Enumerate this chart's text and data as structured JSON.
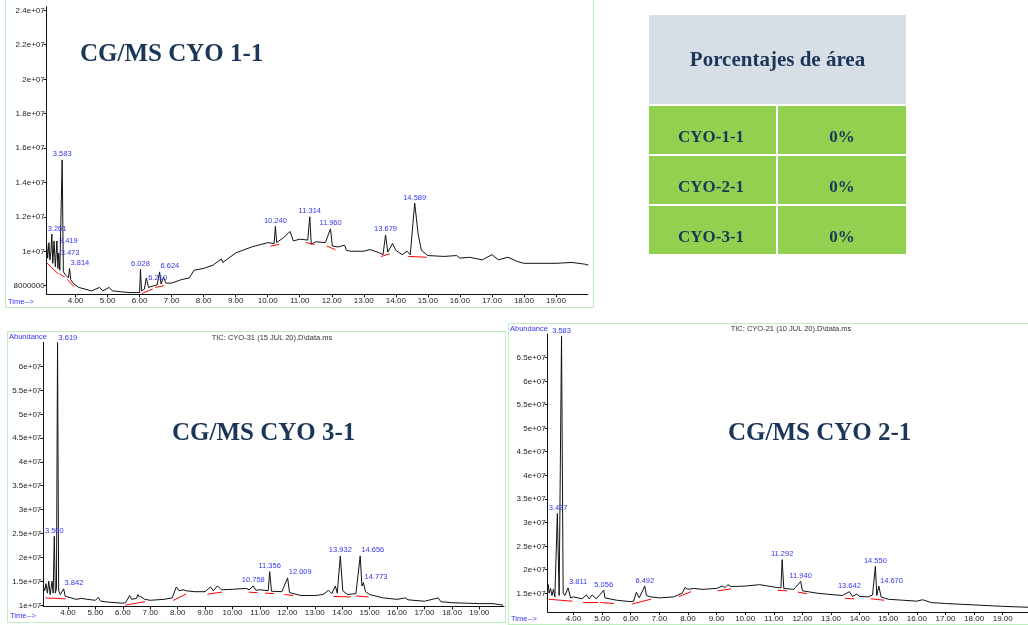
{
  "chart_data": [
    {
      "type": "line",
      "title": "CG/MS CYO 1-1",
      "xlabel": "Time-->",
      "marker": "none",
      "xlim": [
        3.1,
        20.0
      ],
      "ylim": [
        7500000,
        24200000
      ],
      "xticks": [
        {
          "value": 4,
          "label": "4.00"
        },
        {
          "value": 5,
          "label": "5.00"
        },
        {
          "value": 6,
          "label": "6.00"
        },
        {
          "value": 7,
          "label": "7.00"
        },
        {
          "value": 8,
          "label": "8.00"
        },
        {
          "value": 9,
          "label": "9.00"
        },
        {
          "value": 10,
          "label": "10.00"
        },
        {
          "value": 11,
          "label": "11.00"
        },
        {
          "value": 12,
          "label": "12.00"
        },
        {
          "value": 13,
          "label": "13.00"
        },
        {
          "value": 14,
          "label": "14.00"
        },
        {
          "value": 15,
          "label": "15.00"
        },
        {
          "value": 16,
          "label": "16.00"
        },
        {
          "value": 17,
          "label": "17.00"
        },
        {
          "value": 18,
          "label": "18.00"
        },
        {
          "value": 19,
          "label": "19.00"
        }
      ],
      "yticks": [
        8000000,
        {
          "value": 10000000,
          "label": "1e+07"
        },
        {
          "value": 12000000,
          "label": "1.2e+07"
        },
        {
          "value": 14000000,
          "label": "1.4e+07"
        },
        {
          "value": 16000000,
          "label": "1.6e+07"
        },
        {
          "value": 18000000,
          "label": "1.8e+07"
        },
        {
          "value": 20000000,
          "label": "2e+07"
        },
        {
          "value": 22000000,
          "label": "2.2e+07"
        },
        {
          "value": 24000000,
          "label": "2.4e+07"
        }
      ],
      "series": [
        {
          "color": "#111111",
          "x": [
            3.1,
            3.13,
            3.17,
            3.2,
            3.23,
            3.261,
            3.29,
            3.33,
            3.37,
            3.419,
            3.45,
            3.473,
            3.51,
            3.583,
            3.62,
            3.7,
            3.78,
            3.814,
            3.85,
            3.95,
            4.1,
            4.3,
            4.5,
            4.75,
            4.85,
            5.05,
            5.15,
            5.4,
            5.7,
            5.95,
            6.0,
            6.028,
            6.06,
            6.15,
            6.21,
            6.28,
            6.45,
            6.55,
            6.624,
            6.67,
            6.75,
            6.82,
            7.0,
            7.3,
            7.55,
            7.7,
            8.0,
            8.3,
            8.55,
            8.6,
            9.0,
            9.5,
            10.0,
            10.2,
            10.24,
            10.28,
            10.5,
            10.7,
            10.8,
            11.0,
            11.25,
            11.314,
            11.36,
            11.5,
            11.8,
            11.96,
            12.02,
            12.2,
            12.4,
            12.46,
            12.6,
            13.0,
            13.2,
            13.5,
            13.6,
            13.679,
            13.75,
            13.9,
            14.0,
            14.2,
            14.35,
            14.45,
            14.589,
            14.7,
            14.8,
            15.0,
            15.5,
            15.9,
            16.0,
            16.3,
            16.7,
            17.0,
            17.2,
            17.5,
            17.8,
            18.0,
            18.5,
            19.0,
            19.5,
            19.9,
            20.0
          ],
          "values": [
            10400000,
            9600000,
            10500000,
            9500000,
            9900000,
            11000000,
            9300000,
            10600000,
            9100000,
            10600000,
            9000000,
            9900000,
            8900000,
            15300000,
            8800000,
            8600000,
            8450000,
            9000000,
            8350000,
            8100000,
            7900000,
            7800000,
            7700000,
            7900000,
            7700000,
            7900000,
            7700000,
            7650000,
            7600000,
            7600000,
            7600000,
            8950000,
            7700000,
            7800000,
            8450000,
            7900000,
            8000000,
            8050000,
            8800000,
            8100000,
            8500000,
            8150000,
            8150000,
            8350000,
            8450000,
            8900000,
            9000000,
            9200000,
            9550000,
            9350000,
            9900000,
            10250000,
            10500000,
            10450000,
            11450000,
            10500000,
            10800000,
            11150000,
            10600000,
            10700000,
            10650000,
            12000000,
            10400000,
            10550000,
            10500000,
            11300000,
            10300000,
            10250000,
            10350000,
            10050000,
            10000000,
            10000000,
            10100000,
            9900000,
            9800000,
            10950000,
            9950000,
            10450000,
            10050000,
            9800000,
            10000000,
            9800000,
            12800000,
            10950000,
            10050000,
            9750000,
            9700000,
            9750000,
            9600000,
            9650000,
            9500000,
            9800000,
            9500000,
            9650000,
            9400000,
            9300000,
            9300000,
            9300000,
            9350000,
            9250000,
            9200000
          ]
        },
        {
          "color": "#ff0000",
          "x": [
            3.12,
            3.45,
            3.47,
            3.5,
            3.65,
            3.7,
            3.75,
            3.95,
            5.0,
            6.08,
            6.4,
            6.45,
            6.5,
            6.75,
            8.4,
            10.1,
            10.35,
            10.8,
            11.2,
            11.45,
            11.6,
            11.85,
            12.1,
            12.8,
            13.55,
            13.8,
            14.1,
            14.4,
            14.95
          ],
          "values": [
            9300000,
            8700000,
            null,
            8700000,
            8500000,
            null,
            8350000,
            7950000,
            null,
            7550000,
            7800000,
            null,
            7900000,
            8000000,
            null,
            10300000,
            10400000,
            null,
            10500000,
            10400000,
            null,
            10300000,
            10100000,
            null,
            9700000,
            9850000,
            null,
            9700000,
            9650000
          ]
        }
      ],
      "annotations": [
        {
          "text": "3.261",
          "x": 3.261,
          "y": 11000000
        },
        {
          "text": "3.419",
          "x": 3.419,
          "y": 10600000
        },
        {
          "text": "3.473",
          "x": 3.473,
          "y": 9900000
        },
        {
          "text": "3.583",
          "x": 3.583,
          "y": 15300000
        },
        {
          "text": "3.814",
          "x": 3.814,
          "y": 9000000
        },
        {
          "text": "6.028",
          "x": 6.028,
          "y": 8950000
        },
        {
          "text": "6.210",
          "x": 6.21,
          "y": 8450000
        },
        {
          "text": "6.624",
          "x": 6.624,
          "y": 8800000
        },
        {
          "text": "10.240",
          "x": 10.24,
          "y": 11450000
        },
        {
          "text": "11.314",
          "x": 11.314,
          "y": 12000000
        },
        {
          "text": "11.960",
          "x": 11.96,
          "y": 11300000
        },
        {
          "text": "13.679",
          "x": 13.679,
          "y": 10950000
        },
        {
          "text": "14.589",
          "x": 14.589,
          "y": 12800000
        }
      ]
    },
    {
      "type": "other",
      "title": "Porcentajes de área",
      "annotations": [
        "CYO-1-1",
        "0%",
        "CYO-2-1",
        "0%",
        "CYO-3-1",
        "0%"
      ]
    },
    {
      "type": "line",
      "title": "CG/MS CYO 3-1",
      "subtitle": "TIC: CYO-31 (15 JUL 20).D\\data.ms",
      "xlabel": "Time-->",
      "ylabel": "Abundance",
      "marker": "none",
      "xlim": [
        3.1,
        19.9
      ],
      "ylim": [
        9700000,
        65000000
      ],
      "xticks": [
        {
          "value": 4,
          "label": "4.00"
        },
        {
          "value": 5,
          "label": "5.00"
        },
        {
          "value": 6,
          "label": "6.00"
        },
        {
          "value": 7,
          "label": "7.00"
        },
        {
          "value": 8,
          "label": "8.00"
        },
        {
          "value": 9,
          "label": "9.00"
        },
        {
          "value": 10,
          "label": "10.00"
        },
        {
          "value": 11,
          "label": "11.00"
        },
        {
          "value": 12,
          "label": "12.00"
        },
        {
          "value": 13,
          "label": "13.00"
        },
        {
          "value": 14,
          "label": "14.00"
        },
        {
          "value": 15,
          "label": "15.00"
        },
        {
          "value": 16,
          "label": "16.00"
        },
        {
          "value": 17,
          "label": "17.00"
        },
        {
          "value": 18,
          "label": "18.00"
        },
        {
          "value": 19,
          "label": "19.00"
        }
      ],
      "yticks": [
        {
          "value": 10000000,
          "label": "1e+07"
        },
        {
          "value": 15000000,
          "label": "1.5e+07"
        },
        {
          "value": 20000000,
          "label": "2e+07"
        },
        {
          "value": 25000000,
          "label": "2.5e+07"
        },
        {
          "value": 30000000,
          "label": "3e+07"
        },
        {
          "value": 35000000,
          "label": "3.5e+07"
        },
        {
          "value": 40000000,
          "label": "4e+07"
        },
        {
          "value": 45000000,
          "label": "4.5e+07"
        },
        {
          "value": 50000000,
          "label": "5e+07"
        },
        {
          "value": 55000000,
          "label": "5.5e+07"
        },
        {
          "value": 60000000,
          "label": "6e+07"
        }
      ],
      "series": [
        {
          "color": "#111111",
          "x": [
            3.1,
            3.15,
            3.2,
            3.25,
            3.3,
            3.35,
            3.42,
            3.46,
            3.5,
            3.54,
            3.58,
            3.619,
            3.66,
            3.72,
            3.842,
            3.9,
            4.0,
            4.3,
            4.5,
            4.7,
            5.0,
            5.1,
            5.2,
            5.5,
            6.0,
            6.1,
            6.25,
            6.32,
            6.5,
            6.55,
            6.6,
            6.65,
            6.8,
            7.0,
            7.5,
            7.8,
            7.95,
            8.05,
            8.2,
            8.3,
            8.6,
            9.0,
            9.2,
            9.3,
            9.45,
            9.6,
            10.0,
            10.5,
            10.6,
            10.758,
            10.85,
            11.0,
            11.3,
            11.356,
            11.42,
            11.8,
            12.009,
            12.08,
            12.5,
            13.0,
            13.3,
            13.5,
            13.62,
            13.75,
            13.82,
            13.932,
            14.02,
            14.2,
            14.5,
            14.656,
            14.72,
            14.773,
            14.85,
            15.0,
            15.5,
            16.0,
            16.3,
            16.4,
            17.0,
            17.5,
            17.6,
            18.0,
            18.5,
            19.0,
            19.5,
            19.85
          ],
          "values": [
            14100000,
            13000000,
            14500000,
            12500000,
            15000000,
            12200000,
            15000000,
            12500000,
            24400000,
            12500000,
            13500000,
            65000000,
            13000000,
            12200000,
            13400000,
            11800000,
            11700000,
            11200000,
            11400000,
            11200000,
            11000000,
            11600000,
            10800000,
            10600000,
            10400000,
            10500000,
            12000000,
            11200000,
            11400000,
            12200000,
            11700000,
            11800000,
            11200000,
            11000000,
            11200000,
            11500000,
            13800000,
            13000000,
            13200000,
            13000000,
            12800000,
            12800000,
            13800000,
            13000000,
            14000000,
            13200000,
            13300000,
            13500000,
            13200000,
            14000000,
            13100000,
            13200000,
            13000000,
            17000000,
            12900000,
            12800000,
            15700000,
            12600000,
            12000000,
            12000000,
            12200000,
            13100000,
            12400000,
            14000000,
            12500000,
            20300000,
            13000000,
            12200000,
            12400000,
            20300000,
            14000000,
            14700000,
            12800000,
            12200000,
            11500000,
            11200000,
            11500000,
            11100000,
            10800000,
            11500000,
            10700000,
            10500000,
            10400000,
            10300000,
            10300000,
            10000000
          ]
        },
        {
          "color": "#ff0000",
          "x": [
            3.2,
            3.9,
            5.0,
            6.1,
            6.8,
            7.3,
            7.85,
            8.3,
            8.7,
            9.1,
            9.6,
            10.1,
            10.6,
            10.9,
            11.05,
            11.2,
            11.5,
            11.7,
            11.9,
            12.2,
            13.0,
            13.7,
            14.3,
            14.4,
            14.5,
            14.95
          ],
          "values": [
            11500000,
            11300000,
            null,
            10000000,
            10700000,
            null,
            11000000,
            12300000,
            null,
            12300000,
            12700000,
            null,
            12700000,
            12600000,
            null,
            12500000,
            12400000,
            null,
            12200000,
            12000000,
            null,
            11800000,
            11700000,
            null,
            11900000,
            11700000
          ]
        }
      ],
      "annotations": [
        {
          "text": "3.500",
          "x": 3.5,
          "y": 24400000
        },
        {
          "text": "3.619",
          "x": 3.619,
          "y": 65000000
        },
        {
          "text": "3.842",
          "x": 3.842,
          "y": 13400000
        },
        {
          "text": "10.758",
          "x": 10.758,
          "y": 14000000
        },
        {
          "text": "11.356",
          "x": 11.356,
          "y": 17000000
        },
        {
          "text": "12.009",
          "x": 12.009,
          "y": 15700000
        },
        {
          "text": "13.932",
          "x": 13.932,
          "y": 20300000
        },
        {
          "text": "14.656",
          "x": 14.656,
          "y": 20300000
        },
        {
          "text": "14.773",
          "x": 14.773,
          "y": 14700000
        }
      ]
    },
    {
      "type": "line",
      "title": "CG/MS CYO 2-1",
      "subtitle": "TIC: CYO-21 (10 JUL 20).D\\data.ms",
      "xlabel": "Time-->",
      "ylabel": "Abundance",
      "marker": "none",
      "xlim": [
        3.1,
        19.9
      ],
      "ylim": [
        11000000,
        70000000
      ],
      "xticks": [
        {
          "value": 4,
          "label": "4.00"
        },
        {
          "value": 5,
          "label": "5.00"
        },
        {
          "value": 6,
          "label": "6.00"
        },
        {
          "value": 7,
          "label": "7.00"
        },
        {
          "value": 8,
          "label": "8.00"
        },
        {
          "value": 9,
          "label": "9.00"
        },
        {
          "value": 10,
          "label": "10.00"
        },
        {
          "value": 11,
          "label": "11.00"
        },
        {
          "value": 12,
          "label": "12.00"
        },
        {
          "value": 13,
          "label": "13.00"
        },
        {
          "value": 14,
          "label": "14.00"
        },
        {
          "value": 15,
          "label": "15.00"
        },
        {
          "value": 16,
          "label": "16.00"
        },
        {
          "value": 17,
          "label": "17.00"
        },
        {
          "value": 18,
          "label": "18.00"
        },
        {
          "value": 19,
          "label": "19.00"
        }
      ],
      "yticks": [
        {
          "value": 15000000,
          "label": "1.5e+07"
        },
        {
          "value": 20000000,
          "label": "2e+07"
        },
        {
          "value": 25000000,
          "label": "2.5e+07"
        },
        {
          "value": 30000000,
          "label": "3e+07"
        },
        {
          "value": 35000000,
          "label": "3.5e+07"
        },
        {
          "value": 40000000,
          "label": "4e+07"
        },
        {
          "value": 45000000,
          "label": "4.5e+07"
        },
        {
          "value": 50000000,
          "label": "5e+07"
        },
        {
          "value": 55000000,
          "label": "5.5e+07"
        },
        {
          "value": 60000000,
          "label": "6e+07"
        },
        {
          "value": 65000000,
          "label": "6.5e+07"
        }
      ],
      "series": [
        {
          "color": "#111111",
          "x": [
            3.12,
            3.15,
            3.2,
            3.25,
            3.3,
            3.35,
            3.437,
            3.5,
            3.583,
            3.64,
            3.7,
            3.811,
            3.9,
            4.0,
            4.3,
            4.45,
            4.55,
            4.65,
            4.8,
            5.056,
            5.1,
            5.5,
            6.0,
            6.1,
            6.2,
            6.3,
            6.492,
            6.55,
            6.7,
            7.0,
            7.5,
            7.8,
            7.9,
            8.0,
            8.2,
            8.5,
            9.0,
            9.2,
            9.3,
            9.4,
            9.5,
            10.0,
            10.5,
            11.0,
            11.25,
            11.292,
            11.35,
            11.7,
            11.94,
            12.0,
            12.5,
            13.0,
            13.4,
            13.642,
            13.75,
            13.9,
            14.0,
            14.3,
            14.45,
            14.55,
            14.6,
            14.67,
            14.75,
            15.0,
            15.5,
            16.0,
            16.2,
            16.5,
            17.0,
            18.0,
            19.0,
            19.9
          ],
          "values": [
            16800000,
            15000000,
            16000000,
            14500000,
            15800000,
            14200000,
            31900000,
            14500000,
            69500000,
            15000000,
            14500000,
            16100000,
            14000000,
            14200000,
            13800000,
            14600000,
            13800000,
            14600000,
            13800000,
            15600000,
            14000000,
            13500000,
            13200000,
            13300000,
            15200000,
            14000000,
            16500000,
            14500000,
            14200000,
            14000000,
            14200000,
            15000000,
            16200000,
            15800000,
            16000000,
            15800000,
            16000000,
            16500000,
            16200000,
            16800000,
            16400000,
            16500000,
            16800000,
            16300000,
            16100000,
            22100000,
            16000000,
            15800000,
            17500000,
            15500000,
            15000000,
            14700000,
            14500000,
            15300000,
            14300000,
            14800000,
            14300000,
            14200000,
            14600000,
            20700000,
            14500000,
            16500000,
            14200000,
            13700000,
            13500000,
            13300000,
            13600000,
            13000000,
            12800000,
            12500000,
            12200000,
            12000000
          ]
        },
        {
          "color": "#ff0000",
          "x": [
            3.15,
            3.95,
            4.1,
            4.35,
            4.85,
            4.9,
            4.95,
            5.4,
            5.7,
            6.05,
            6.7,
            7.2,
            7.7,
            8.1,
            8.6,
            9.05,
            9.5,
            10.4,
            11.15,
            11.45,
            11.6,
            11.85,
            12.15,
            12.8,
            13.5,
            13.8,
            14.1,
            14.4,
            14.85
          ],
          "values": [
            13700000,
            13300000,
            null,
            13000000,
            13000000,
            null,
            13000000,
            12800000,
            null,
            12700000,
            13700000,
            null,
            14300000,
            15300000,
            null,
            15500000,
            15900000,
            null,
            15600000,
            15500000,
            null,
            15200000,
            14900000,
            null,
            13900000,
            13800000,
            null,
            13800000,
            13500000
          ]
        }
      ],
      "annotations": [
        {
          "text": "3.437",
          "x": 3.437,
          "y": 31900000
        },
        {
          "text": "3.583",
          "x": 3.583,
          "y": 69500000
        },
        {
          "text": "3.811",
          "x": 3.811,
          "y": 16100000
        },
        {
          "text": "5.056",
          "x": 5.056,
          "y": 15600000
        },
        {
          "text": "6.492",
          "x": 6.492,
          "y": 16500000
        },
        {
          "text": "11.292",
          "x": 11.292,
          "y": 22100000
        },
        {
          "text": "11.940",
          "x": 11.94,
          "y": 17500000
        },
        {
          "text": "13.642",
          "x": 13.642,
          "y": 15300000
        },
        {
          "text": "14.550",
          "x": 14.55,
          "y": 20700000
        },
        {
          "text": "14.670",
          "x": 14.67,
          "y": 16500000
        }
      ]
    }
  ]
}
